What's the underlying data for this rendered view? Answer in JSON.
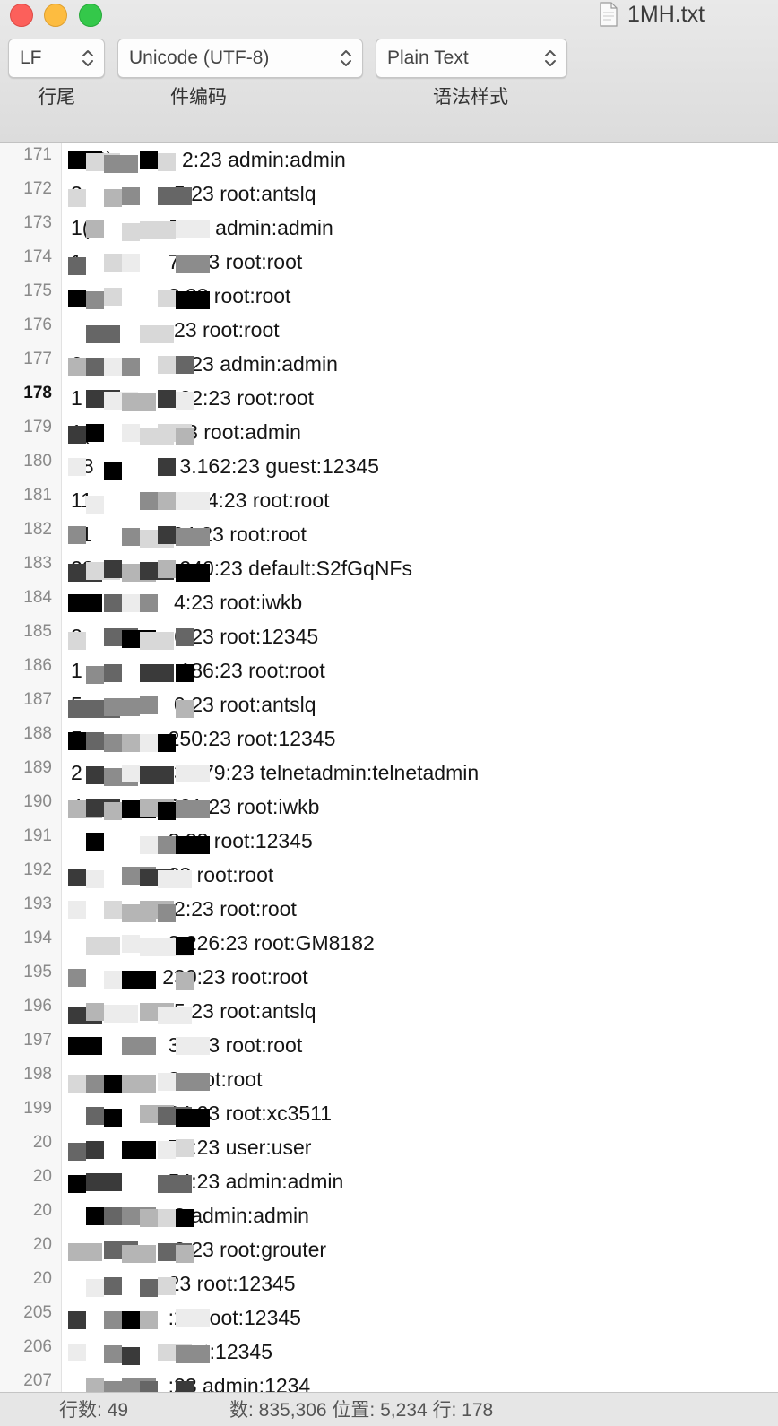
{
  "window": {
    "title": "1MH.txt",
    "controls": [
      "close",
      "minimize",
      "zoom"
    ]
  },
  "toolbar": {
    "line_ending": {
      "value": "LF",
      "caption": "行尾"
    },
    "encoding": {
      "value": "Unicode (UTF-8)",
      "caption": "件编码"
    },
    "syntax": {
      "value": "Plain Text",
      "caption": "语法样式"
    }
  },
  "editor": {
    "current_line": "178",
    "lines": [
      {
        "num": "171",
        "text": "1( ?)            2:23 admin:admin"
      },
      {
        "num": "172",
        "text": "3                5:23 root:antslq"
      },
      {
        "num": "173",
        "text": "1(              7:23 admin:admin"
      },
      {
        "num": "174",
        "text": "1               77:23 root:root"
      },
      {
        "num": "175",
        "text": "                 3:23 root:root"
      },
      {
        "num": "176",
        "text": "                 :23 root:root"
      },
      {
        "num": "177",
        "text": "6                3:23 admin:admin"
      },
      {
        "num": "178",
        "text": "1               122:23 root:root"
      },
      {
        "num": "179",
        "text": "1(              :23 root:admin"
      },
      {
        "num": "180",
        "text": "18               3.162:23 guest:12345"
      },
      {
        "num": "181",
        "text": "11               3.94:23 root:root"
      },
      {
        "num": "182",
        "text": "11              94:23 root:root"
      },
      {
        "num": "183",
        "text": "22               240:23 default:S2fGqNFs"
      },
      {
        "num": "184",
        "text": "2                4:23 root:iwkb"
      },
      {
        "num": "185",
        "text": "2                6:23 root:12345"
      },
      {
        "num": "186",
        "text": "1                .186:23 root:root"
      },
      {
        "num": "187",
        "text": "5                0:23 root:antslq"
      },
      {
        "num": "188",
        "text": "5               250:23 root:12345"
      },
      {
        "num": "189",
        "text": "2                3.179:23 telnetadmin:telnetadmin"
      },
      {
        "num": "190",
        "text": "4               221:23 root:iwkb"
      },
      {
        "num": "191",
        "text": "                 3:23 root:12345"
      },
      {
        "num": "192",
        "text": "                 23 root:root"
      },
      {
        "num": "193",
        "text": "                32:23 root:root"
      },
      {
        "num": "194",
        "text": "                 3.226:23 root:GM8182"
      },
      {
        "num": "195",
        "text": "                230:23 root:root"
      },
      {
        "num": "196",
        "text": "                95:23 root:antslq"
      },
      {
        "num": "197",
        "text": "                 30:23 root:root"
      },
      {
        "num": "198",
        "text": "                 3 root:root"
      },
      {
        "num": "199",
        "text": "                 94:23 root:xc3511"
      },
      {
        "num": "20",
        "text": "                 70:23 user:user"
      },
      {
        "num": "20",
        "text": "                 54:23 admin:admin"
      },
      {
        "num": "20",
        "text": "                  3 admin:admin"
      },
      {
        "num": "20",
        "text": "                  2:23 root:grouter"
      },
      {
        "num": "20",
        "text": "                 23 root:12345"
      },
      {
        "num": "205",
        "text": "                 :23 root:12345"
      },
      {
        "num": "206",
        "text": "                  root:12345"
      },
      {
        "num": "207",
        "text": "                 :23 admin:1234"
      }
    ]
  },
  "status_bar": {
    "left": "行数: 49",
    "right": "数: 835,306  位置: 5,234  行: 178"
  },
  "colors": {
    "text": "#151515",
    "line_number": "#8a8a8a",
    "gutter": "#f7f7f7",
    "chrome": "#e4e4e4",
    "redaction_dark": "#000000",
    "redaction_mid": "#555555",
    "redaction_light": "#bbbbbb"
  }
}
